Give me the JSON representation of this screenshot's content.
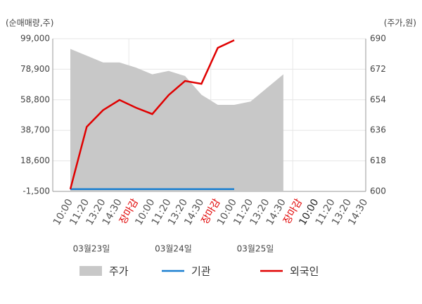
{
  "chart_data": {
    "type": "line",
    "y_axis_title": "(순매매량,주)",
    "y2_axis_title": "(주가,원)",
    "categories": [
      "10:00",
      "11:20",
      "13:20",
      "14:30",
      "장마감",
      "10:00",
      "11:20",
      "13:20",
      "14:30",
      "장마감",
      "10:00",
      "11:20",
      "13:20",
      "14:30",
      "장마감",
      "10:00",
      "11:20",
      "13:20",
      "14:30"
    ],
    "category_colors": [
      "#555",
      "#555",
      "#555",
      "#555",
      "#e00000",
      "#555",
      "#555",
      "#555",
      "#555",
      "#e00000",
      "#555",
      "#555",
      "#555",
      "#555",
      "#e00000",
      "#222",
      "#555",
      "#555",
      "#555"
    ],
    "date_labels": [
      "03월23일",
      "03월24일",
      "03월25일"
    ],
    "series": [
      {
        "name": "주가",
        "type": "area",
        "axis": "y2",
        "color": "#c8c8c8",
        "values": [
          684,
          680,
          676,
          676,
          673,
          669,
          671,
          668,
          657,
          651,
          651,
          653,
          661,
          669,
          null,
          null,
          null,
          null,
          null
        ]
      },
      {
        "name": "기관",
        "color": "#1a7fd0",
        "values": [
          0,
          0,
          0,
          0,
          0,
          0,
          0,
          0,
          0,
          0,
          0,
          null,
          null,
          null,
          null,
          null,
          null,
          null,
          null
        ]
      },
      {
        "name": "외국인",
        "color": "#e00000",
        "values": [
          0,
          41000,
          52000,
          58700,
          53600,
          49400,
          61900,
          71200,
          69300,
          93000,
          98000,
          null,
          null,
          null,
          null,
          null,
          null,
          null,
          null
        ]
      }
    ],
    "ylim": [
      -1500,
      99000
    ],
    "yticks": [
      {
        "value": -1500,
        "label": "-1,500"
      },
      {
        "value": 18600,
        "label": "18,600"
      },
      {
        "value": 38700,
        "label": "38,700"
      },
      {
        "value": 58800,
        "label": "58,800"
      },
      {
        "value": 78900,
        "label": "78,900"
      },
      {
        "value": 99000,
        "label": "99,000"
      }
    ],
    "y2lim": [
      600,
      690
    ],
    "y2ticks": [
      600,
      618,
      636,
      654,
      672,
      690
    ],
    "grid": true
  }
}
